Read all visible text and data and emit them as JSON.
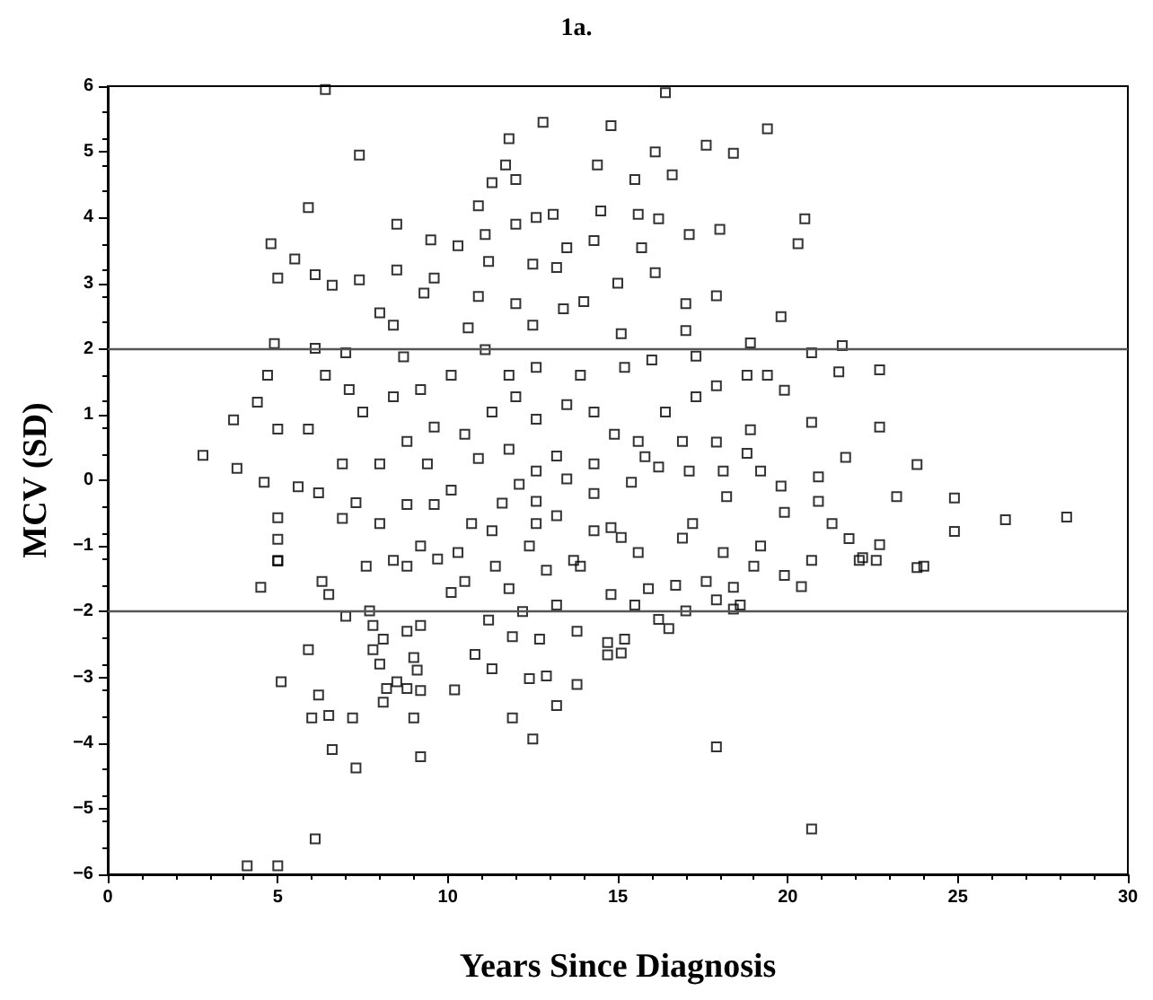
{
  "chart_data": {
    "type": "scatter",
    "title": "1a.",
    "xlabel": "Years Since Diagnosis",
    "ylabel": "MCV (SD)",
    "xlim": [
      0,
      30
    ],
    "xticks": [
      0,
      5,
      10,
      15,
      20,
      25,
      30
    ],
    "ylim": [
      -6,
      6
    ],
    "yticks": [
      -6,
      -5,
      -4,
      -3,
      -2,
      -1,
      0,
      1,
      2,
      3,
      4,
      5,
      6
    ],
    "grid": false,
    "marker": "square",
    "ref_lines": [
      {
        "axis": "y",
        "value": 2,
        "color": "#555555"
      },
      {
        "axis": "y",
        "value": -2,
        "color": "#555555"
      }
    ],
    "series": [
      {
        "color": "#000000",
        "x": [
          6.4,
          16.4,
          7.4,
          12.8,
          14.8,
          19.4,
          11.8,
          11.7,
          14.4,
          16.1,
          17.6,
          18.4,
          16.6,
          15.5,
          11.3,
          12.0,
          5.9,
          10.9,
          14.5,
          15.6,
          13.1,
          12.6,
          20.5,
          8.5,
          12.0,
          16.2,
          18.0,
          4.8,
          20.3,
          5.5,
          9.5,
          10.3,
          11.1,
          13.5,
          15.7,
          14.3,
          17.1,
          6.1,
          5.0,
          6.6,
          7.4,
          8.5,
          9.6,
          11.2,
          12.5,
          13.2,
          15.0,
          16.1,
          9.3,
          10.9,
          12.0,
          13.4,
          14.0,
          17.0,
          17.9,
          8.0,
          8.4,
          10.6,
          12.5,
          15.1,
          19.8,
          17.0,
          4.9,
          6.1,
          21.6,
          18.9,
          7.0,
          8.7,
          11.1,
          4.7,
          6.4,
          22.7,
          19.9,
          21.5,
          4.4,
          3.7,
          5.0,
          5.9,
          2.8,
          3.8,
          4.6,
          5.6,
          6.2,
          22.7,
          23.8,
          24.9,
          26.4,
          28.2,
          23.2,
          24.9,
          21.7,
          20.9,
          19.9,
          20.7,
          17.9,
          18.9,
          18.8,
          19.8,
          18.2,
          17.1,
          17.2,
          16.2,
          15.4,
          14.8,
          15.1,
          14.3,
          13.5,
          13.2,
          13.2,
          12.6,
          12.1,
          11.6,
          10.9,
          10.7,
          10.1,
          9.4,
          9.6,
          8.8,
          8.0,
          6.9,
          7.3,
          5.0,
          5.0,
          5.0,
          10.5,
          11.3,
          12.0,
          12.6,
          13.5,
          14.3,
          14.9,
          15.6,
          16.4,
          17.3,
          17.9,
          18.8,
          19.4,
          11.8,
          12.6,
          13.9,
          15.2,
          16.0,
          17.3,
          20.7,
          10.1,
          9.2,
          8.4,
          7.5,
          7.1,
          9.6,
          8.8,
          8.0,
          6.9,
          11.8,
          12.6,
          14.3,
          15.8,
          16.9,
          18.1,
          19.2,
          20.9,
          21.3,
          21.8,
          22.1,
          22.6,
          23.8,
          12.6,
          11.3,
          10.3,
          9.2,
          8.4,
          15.6,
          16.9,
          18.1,
          19.2,
          20.7,
          13.7,
          12.4,
          14.3,
          4.5,
          5.0,
          6.3,
          6.5,
          7.0,
          7.6,
          7.7,
          7.8,
          7.8,
          8.0,
          8.1,
          8.1,
          8.2,
          8.5,
          8.8,
          8.8,
          9.0,
          9.1,
          9.2,
          9.2,
          9.0,
          9.2,
          5.1,
          5.9,
          6.2,
          6.0,
          6.5,
          6.6,
          7.2,
          7.3,
          4.1,
          5.0,
          6.1,
          10.2,
          10.8,
          11.3,
          11.9,
          11.9,
          11.2,
          12.2,
          12.7,
          12.4,
          12.9,
          13.2,
          12.5,
          13.2,
          13.8,
          13.8,
          14.7,
          14.7,
          15.1,
          15.2,
          15.5,
          16.2,
          16.5,
          17.0,
          17.9,
          20.7,
          18.4,
          18.6,
          17.9,
          19.9,
          20.4,
          22.2,
          24.0,
          22.7,
          10.1,
          10.5,
          11.8,
          14.8,
          15.9,
          16.7,
          17.6,
          18.4,
          19.0,
          12.9,
          13.9,
          11.4,
          8.8,
          9.7
        ],
        "values": [
          5.95,
          5.9,
          4.95,
          5.45,
          5.4,
          5.35,
          5.2,
          4.8,
          4.8,
          5.0,
          5.1,
          4.98,
          4.65,
          4.58,
          4.53,
          4.58,
          4.15,
          4.18,
          4.1,
          4.05,
          4.05,
          4.0,
          3.98,
          3.9,
          3.9,
          3.98,
          3.82,
          3.6,
          3.6,
          3.37,
          3.66,
          3.57,
          3.74,
          3.54,
          3.54,
          3.65,
          3.74,
          3.13,
          3.08,
          2.97,
          3.05,
          3.2,
          3.08,
          3.33,
          3.29,
          3.24,
          3.0,
          3.16,
          2.85,
          2.8,
          2.69,
          2.61,
          2.72,
          2.69,
          2.81,
          2.55,
          2.36,
          2.32,
          2.36,
          2.23,
          2.49,
          2.28,
          2.08,
          2.01,
          2.05,
          2.09,
          1.94,
          1.88,
          1.99,
          1.6,
          1.6,
          1.68,
          1.37,
          1.65,
          1.19,
          0.92,
          0.78,
          0.78,
          0.38,
          0.18,
          -0.03,
          -0.1,
          -0.19,
          0.81,
          0.24,
          -0.27,
          -0.6,
          -0.56,
          -0.25,
          -0.78,
          0.35,
          0.05,
          -0.49,
          0.88,
          0.58,
          0.77,
          0.41,
          -0.09,
          -0.25,
          0.14,
          -0.66,
          0.2,
          -0.03,
          -0.72,
          -0.87,
          -0.2,
          0.02,
          -0.54,
          0.37,
          -0.66,
          -0.06,
          -0.35,
          0.33,
          -0.66,
          -0.15,
          0.25,
          -0.37,
          -0.37,
          -0.66,
          -0.58,
          -0.34,
          -0.57,
          -0.9,
          -1.23,
          0.7,
          1.04,
          1.27,
          0.93,
          1.15,
          1.04,
          0.7,
          0.59,
          1.04,
          1.27,
          1.44,
          1.6,
          1.6,
          1.6,
          1.72,
          1.6,
          1.72,
          1.83,
          1.89,
          1.94,
          1.6,
          1.38,
          1.27,
          1.04,
          1.38,
          0.81,
          0.59,
          0.25,
          0.25,
          0.47,
          0.14,
          0.25,
          0.36,
          0.59,
          0.14,
          0.14,
          -0.32,
          -0.66,
          -0.89,
          -1.22,
          -1.22,
          -1.33,
          -0.32,
          -0.77,
          -1.1,
          -1.0,
          -1.22,
          -1.1,
          -0.88,
          -1.1,
          -1.0,
          -1.22,
          -1.22,
          -1.0,
          -0.77,
          -1.63,
          -1.22,
          -1.54,
          -1.74,
          -2.07,
          -1.31,
          -1.99,
          -2.21,
          -2.58,
          -2.8,
          -2.42,
          -3.38,
          -3.17,
          -3.07,
          -2.3,
          -3.17,
          -2.7,
          -2.89,
          -3.2,
          -2.21,
          -3.62,
          -4.21,
          -3.07,
          -2.58,
          -3.27,
          -3.62,
          -3.58,
          -4.1,
          -3.62,
          -4.38,
          -5.87,
          -5.87,
          -5.46,
          -3.19,
          -2.65,
          -2.87,
          -2.38,
          -3.62,
          -2.13,
          -2.0,
          -2.42,
          -3.02,
          -2.98,
          -3.43,
          -3.94,
          -1.9,
          -2.3,
          -3.11,
          -2.47,
          -2.66,
          -2.63,
          -2.42,
          -1.9,
          -2.12,
          -2.26,
          -1.99,
          -4.06,
          -5.31,
          -1.96,
          -1.9,
          -1.82,
          -1.45,
          -1.62,
          -1.18,
          -1.31,
          -0.98,
          -1.71,
          -1.54,
          -1.65,
          -1.74,
          -1.65,
          -1.6,
          -1.54,
          -1.63,
          -1.31,
          -1.37,
          -1.31,
          -1.31,
          -1.31,
          -1.2
        ]
      }
    ]
  }
}
